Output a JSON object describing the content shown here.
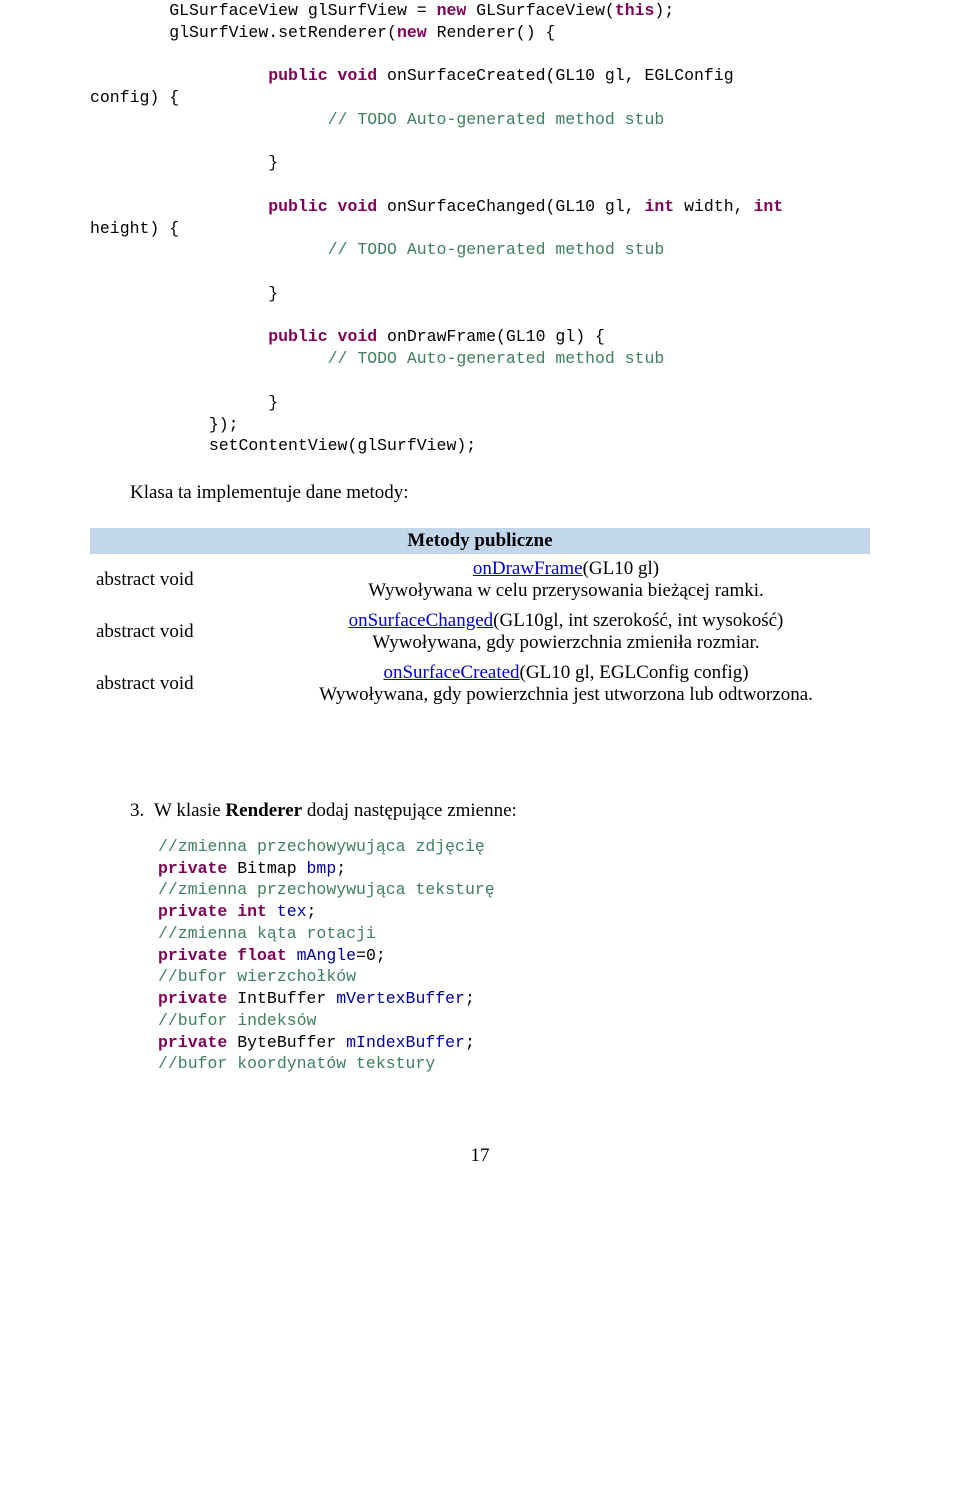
{
  "code": {
    "l1a": "        GLSurfaceView glSurfView = ",
    "l1kw": "new",
    "l1b": " GLSurfaceView(",
    "l1kw2": "this",
    "l1c": ");",
    "l2a": "        glSurfView.setRenderer(",
    "l2kw": "new",
    "l2b": " Renderer() {",
    "l3": "",
    "l4kw": "                  public void",
    "l4a": " onSurfaceCreated(GL10 gl, EGLConfig",
    "l5": "config) {",
    "l6": "                        // TODO Auto-generated method stub",
    "l7": "",
    "l8": "                  }",
    "l9": "",
    "l10kw": "                  public void",
    "l10a": " onSurfaceChanged(GL10 gl, ",
    "l10kw2": "int",
    "l10b": " width, ",
    "l10kw3": "int",
    "l11": "height) {",
    "l12": "                        // TODO Auto-generated method stub",
    "l13": "",
    "l14": "                  }",
    "l15": "",
    "l16kw": "                  public void",
    "l16a": " onDrawFrame(GL10 gl) {",
    "l17": "                        // TODO Auto-generated method stub",
    "l18": "",
    "l19": "                  }",
    "l20": "            });",
    "l21": "            setContentView(glSurfView);"
  },
  "body": {
    "p1": "Klasa ta implementuje dane metody:"
  },
  "table": {
    "heading": "Metody publiczne",
    "rows": [
      {
        "left": "abstract void",
        "link": "onDrawFrame",
        "after_link": "(GL10 gl)",
        "desc": "Wywoływana w celu przerysowania bieżącej ramki."
      },
      {
        "left": "abstract void",
        "link": "onSurfaceChanged",
        "after_link": "(GL10gl, int szerokość, int wysokość)",
        "desc": "Wywoływana, gdy powierzchnia zmieniła rozmiar."
      },
      {
        "left": "abstract void",
        "link": "onSurfaceCreated",
        "after_link": "(GL10 gl, EGLConfig config)",
        "desc": "Wywoływana, gdy powierzchnia jest utworzona lub odtworzona."
      }
    ]
  },
  "step": {
    "num": "3.",
    "text_a": "W klasie ",
    "text_b": "Renderer",
    "text_c": " dodaj następujące zmienne:"
  },
  "code2": {
    "c1": "//zmienna przechowywująca zdjęcię",
    "l2a": "private",
    "l2b": " Bitmap ",
    "l2v": "bmp",
    "l2c": ";",
    "c3": "//zmienna przechowywująca teksturę",
    "l4a": "private int",
    "l4b": " ",
    "l4v": "tex",
    "l4c": ";",
    "c5": "//zmienna kąta rotacji",
    "l6a": "private float",
    "l6b": " ",
    "l6v": "mAngle",
    "l6c": "=0;",
    "c7": "//bufor wierzchołków",
    "l8a": "private",
    "l8b": " IntBuffer ",
    "l8v": "mVertexBuffer",
    "l8c": ";",
    "c9": "//bufor indeksów",
    "l10a": "private",
    "l10b": " ByteBuffer ",
    "l10v": "mIndexBuffer",
    "l10c": ";",
    "c11": "//bufor koordynatów tekstury"
  },
  "page_number": "17"
}
